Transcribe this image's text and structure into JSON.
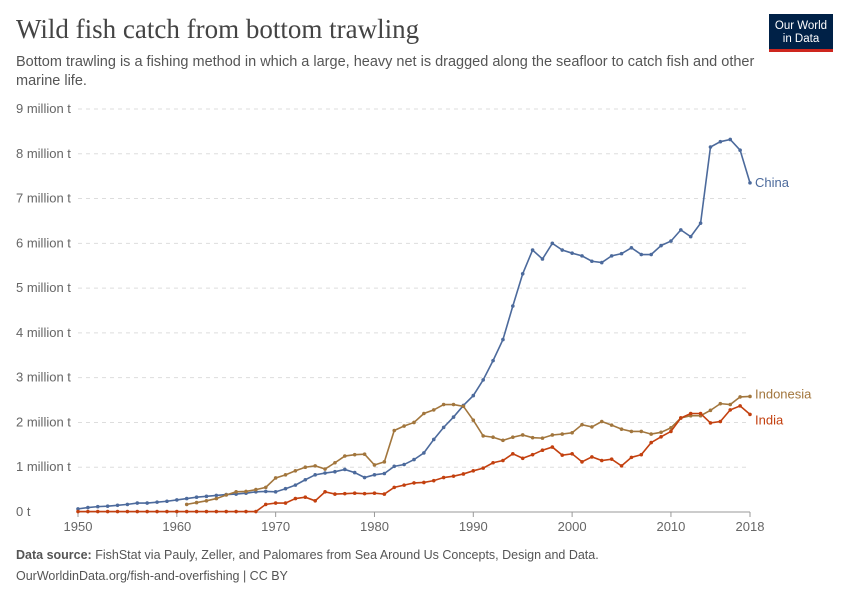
{
  "header": {
    "title": "Wild fish catch from bottom trawling",
    "subtitle": "Bottom trawling is a fishing method in which a large, heavy net is dragged along the seafloor to catch fish and other marine life.",
    "logo": "Our World in Data"
  },
  "footer": {
    "source_label": "Data source:",
    "source": "FishStat via Pauly, Zeller, and Palomares from Sea Around Us Concepts, Design and Data.",
    "url": "OurWorldinData.org/fish-and-overfishing | CC BY"
  },
  "chart_data": {
    "type": "line",
    "xlim": [
      1950,
      2018
    ],
    "ylim": [
      0,
      9000000
    ],
    "x_ticks": [
      1950,
      1960,
      1970,
      1980,
      1990,
      2000,
      2010,
      2018
    ],
    "y_ticks": [
      {
        "v": 0,
        "label": "0 t"
      },
      {
        "v": 1000000,
        "label": "1 million t"
      },
      {
        "v": 2000000,
        "label": "2 million t"
      },
      {
        "v": 3000000,
        "label": "3 million t"
      },
      {
        "v": 4000000,
        "label": "4 million t"
      },
      {
        "v": 5000000,
        "label": "5 million t"
      },
      {
        "v": 6000000,
        "label": "6 million t"
      },
      {
        "v": 7000000,
        "label": "7 million t"
      },
      {
        "v": 8000000,
        "label": "8 million t"
      },
      {
        "v": 9000000,
        "label": "9 million t"
      }
    ],
    "grid": "horizontal dashed",
    "legend": "inline labels at line ends",
    "series": [
      {
        "name": "China",
        "color": "#4c6a9c",
        "start": 1950,
        "values_million_t": [
          0.07,
          0.1,
          0.12,
          0.13,
          0.15,
          0.17,
          0.2,
          0.2,
          0.22,
          0.24,
          0.27,
          0.3,
          0.33,
          0.35,
          0.37,
          0.39,
          0.4,
          0.42,
          0.45,
          0.46,
          0.45,
          0.52,
          0.6,
          0.72,
          0.83,
          0.87,
          0.9,
          0.95,
          0.88,
          0.77,
          0.83,
          0.86,
          1.02,
          1.06,
          1.17,
          1.32,
          1.62,
          1.89,
          2.12,
          2.38,
          2.6,
          2.95,
          3.38,
          3.85,
          4.6,
          5.32,
          5.85,
          5.65,
          6.0,
          5.85,
          5.78,
          5.72,
          5.6,
          5.57,
          5.72,
          5.77,
          5.9,
          5.75,
          5.75,
          5.95,
          6.05,
          6.3,
          6.15,
          6.45,
          8.15,
          8.27,
          8.32,
          8.08,
          7.35
        ]
      },
      {
        "name": "Indonesia",
        "color": "#a2763d",
        "start": 1961,
        "values_million_t": [
          0.17,
          0.21,
          0.25,
          0.3,
          0.38,
          0.45,
          0.46,
          0.5,
          0.55,
          0.76,
          0.83,
          0.92,
          1.0,
          1.03,
          0.96,
          1.1,
          1.25,
          1.28,
          1.29,
          1.05,
          1.12,
          1.82,
          1.92,
          2.0,
          2.2,
          2.28,
          2.4,
          2.4,
          2.36,
          2.05,
          1.7,
          1.67,
          1.6,
          1.67,
          1.72,
          1.66,
          1.65,
          1.72,
          1.74,
          1.77,
          1.95,
          1.9,
          2.02,
          1.94,
          1.85,
          1.8,
          1.8,
          1.74,
          1.78,
          1.88,
          2.1,
          2.15,
          2.15,
          2.27,
          2.42,
          2.4,
          2.57,
          2.58
        ]
      },
      {
        "name": "India",
        "color": "#c3400f",
        "start": 1950,
        "values_million_t": [
          0.01,
          0.01,
          0.01,
          0.01,
          0.01,
          0.01,
          0.01,
          0.01,
          0.01,
          0.01,
          0.01,
          0.01,
          0.01,
          0.01,
          0.01,
          0.01,
          0.01,
          0.01,
          0.01,
          0.17,
          0.2,
          0.2,
          0.3,
          0.33,
          0.25,
          0.45,
          0.4,
          0.41,
          0.42,
          0.41,
          0.42,
          0.4,
          0.55,
          0.6,
          0.65,
          0.66,
          0.7,
          0.77,
          0.8,
          0.85,
          0.92,
          0.98,
          1.1,
          1.15,
          1.3,
          1.2,
          1.28,
          1.38,
          1.45,
          1.27,
          1.3,
          1.12,
          1.23,
          1.15,
          1.18,
          1.03,
          1.22,
          1.28,
          1.55,
          1.68,
          1.8,
          2.1,
          2.2,
          2.2,
          1.99,
          2.02,
          2.28,
          2.37,
          2.18
        ]
      }
    ]
  }
}
